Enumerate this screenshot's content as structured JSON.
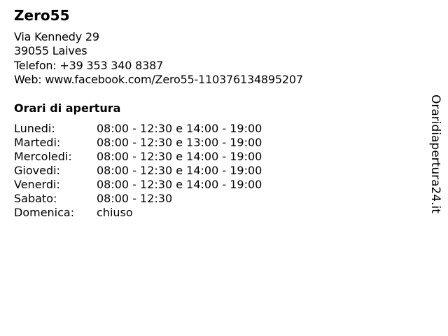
{
  "business": {
    "name": "Zero55",
    "address_line1": "Via Kennedy 29",
    "address_line2": "39055 Laives",
    "phone": "Telefon: +39 353 340 8387",
    "web": "Web: www.facebook.com/Zero55-110376134895207"
  },
  "hours_heading": "Orari di apertura",
  "hours": [
    {
      "day": "Lunedi:",
      "time": "08:00 - 12:30 e 14:00 - 19:00"
    },
    {
      "day": "Martedi:",
      "time": "08:00 - 12:30 e 13:00 - 19:00"
    },
    {
      "day": "Mercoledi:",
      "time": "08:00 - 12:30 e 14:00 - 19:00"
    },
    {
      "day": "Giovedi:",
      "time": "08:00 - 12:30 e 14:00 - 19:00"
    },
    {
      "day": "Venerdi:",
      "time": "08:00 - 12:30 e 14:00 - 19:00"
    },
    {
      "day": "Sabato:",
      "time": "08:00 - 12:30"
    },
    {
      "day": "Domenica:",
      "time": "chiuso"
    }
  ],
  "watermark": "Oraridiapertura24.it"
}
